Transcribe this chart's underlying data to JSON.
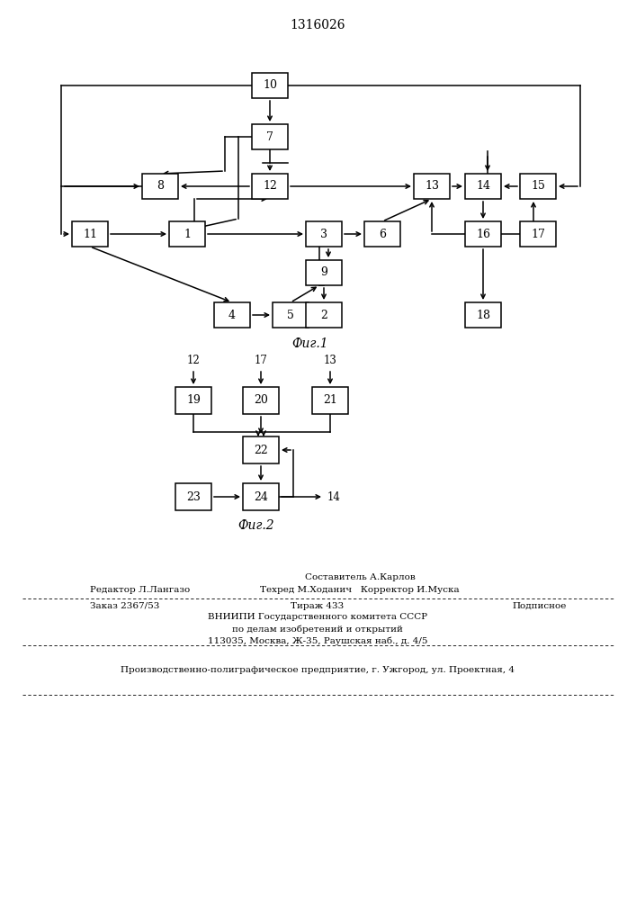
{
  "title": "1316026",
  "fig1_caption": "Фиг.1",
  "fig2_caption": "Фиг.2",
  "footer_author": "Составитель А.Карлов",
  "footer_editor": "Редактор Л.Лангазо",
  "footer_tech": "Техред М.Ходанич",
  "footer_corr": "Корректор И.Муска",
  "footer_order": "Заказ 2367/53",
  "footer_run": "Тираж 433",
  "footer_sub": "Подписное",
  "footer_org1": "ВНИИПИ Государственного комитета СССР",
  "footer_org2": "по делам изобретений и открытий",
  "footer_addr": "113035, Москва, Ж-35, Раушская наб., д. 4/5",
  "footer_plant": "Производственно-полиграфическое предприятие, г. Ужгород, ул. Проектная, 4"
}
